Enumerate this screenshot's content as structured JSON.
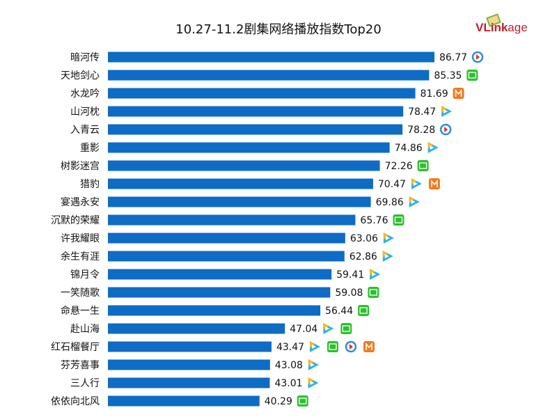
{
  "chart_data": {
    "type": "bar",
    "orientation": "horizontal",
    "title": "10.27-11.2剧集网络播放指数Top20",
    "categories": [
      "暗河传",
      "天地剑心",
      "水龙吟",
      "山河枕",
      "入青云",
      "重影",
      "树影迷宫",
      "猎豹",
      "宴遇永安",
      "沉默的荣耀",
      "许我耀眼",
      "余生有涯",
      "锦月令",
      "一笑随歌",
      "命悬一生",
      "赴山海",
      "红石榴餐厅",
      "芬芳喜事",
      "三人行",
      "依依向北风"
    ],
    "values": [
      86.77,
      85.35,
      81.69,
      78.47,
      78.28,
      74.86,
      72.26,
      70.47,
      69.86,
      65.76,
      63.06,
      62.86,
      59.41,
      59.08,
      56.44,
      47.04,
      43.47,
      43.08,
      43.01,
      40.29
    ],
    "platforms": [
      [
        "youku"
      ],
      [
        "iqiyi"
      ],
      [
        "mango"
      ],
      [
        "tencent"
      ],
      [
        "youku"
      ],
      [
        "tencent"
      ],
      [
        "iqiyi"
      ],
      [
        "tencent",
        "mango"
      ],
      [
        "tencent"
      ],
      [
        "iqiyi"
      ],
      [
        "tencent"
      ],
      [
        "tencent"
      ],
      [
        "tencent"
      ],
      [
        "iqiyi"
      ],
      [
        "iqiyi"
      ],
      [
        "tencent",
        "iqiyi"
      ],
      [
        "tencent",
        "iqiyi",
        "youku",
        "mango"
      ],
      [
        "tencent"
      ],
      [
        "tencent"
      ],
      [
        "iqiyi"
      ]
    ],
    "bar_color": "#0e6cc4",
    "grid": false
  },
  "logo": {
    "text": "VLinkage"
  }
}
